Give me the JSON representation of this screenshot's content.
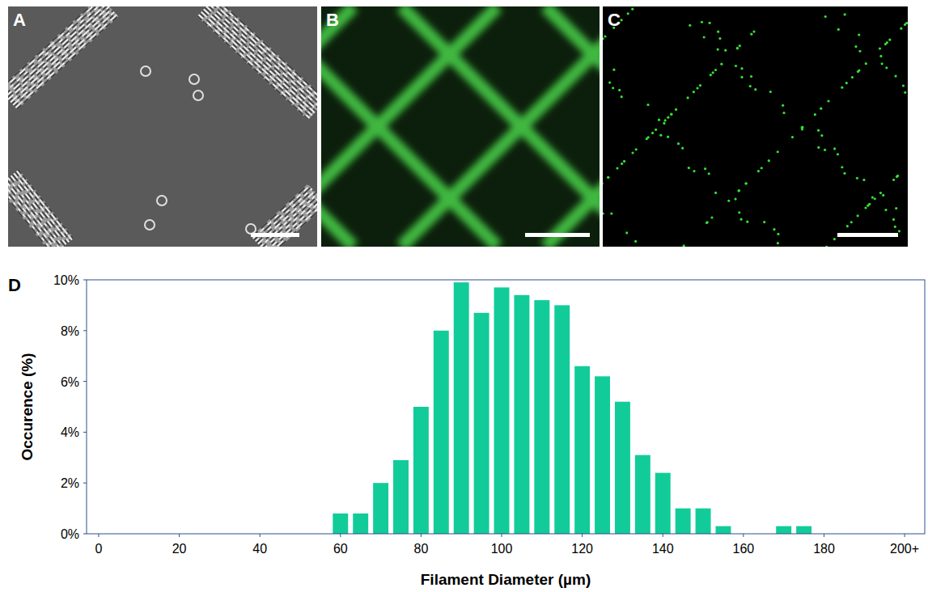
{
  "panels": [
    {
      "label": "A"
    },
    {
      "label": "B"
    },
    {
      "label": "C"
    },
    {
      "label": "D"
    }
  ],
  "chart_data": {
    "type": "bar",
    "x_label": "Filament Diameter (µm)",
    "y_label": "Occurence (%)",
    "x": [
      60,
      65,
      70,
      75,
      80,
      85,
      90,
      95,
      100,
      105,
      110,
      115,
      120,
      125,
      130,
      135,
      140,
      145,
      150,
      155,
      160,
      165,
      170,
      175
    ],
    "values": [
      0.8,
      0.8,
      2.0,
      2.9,
      5.0,
      8.0,
      9.9,
      8.7,
      9.7,
      9.4,
      9.2,
      9.0,
      6.6,
      6.2,
      5.2,
      3.1,
      2.4,
      1.0,
      1.0,
      0.3,
      0,
      0,
      0.3,
      0.3
    ],
    "color": "#11cc99",
    "xlim": [
      -3,
      205
    ],
    "xticks": [
      0,
      20,
      40,
      60,
      80,
      100,
      120,
      140,
      160,
      180,
      {
        "value": 200,
        "label": "200+"
      }
    ],
    "ylim": [
      0,
      10
    ],
    "yticks": [
      {
        "value": 0,
        "label": "0%"
      },
      {
        "value": 2,
        "label": "2%"
      },
      {
        "value": 4,
        "label": "4%"
      },
      {
        "value": 6,
        "label": "6%"
      },
      {
        "value": 8,
        "label": "8%"
      },
      {
        "value": 10,
        "label": "10%"
      }
    ],
    "grid": false
  }
}
